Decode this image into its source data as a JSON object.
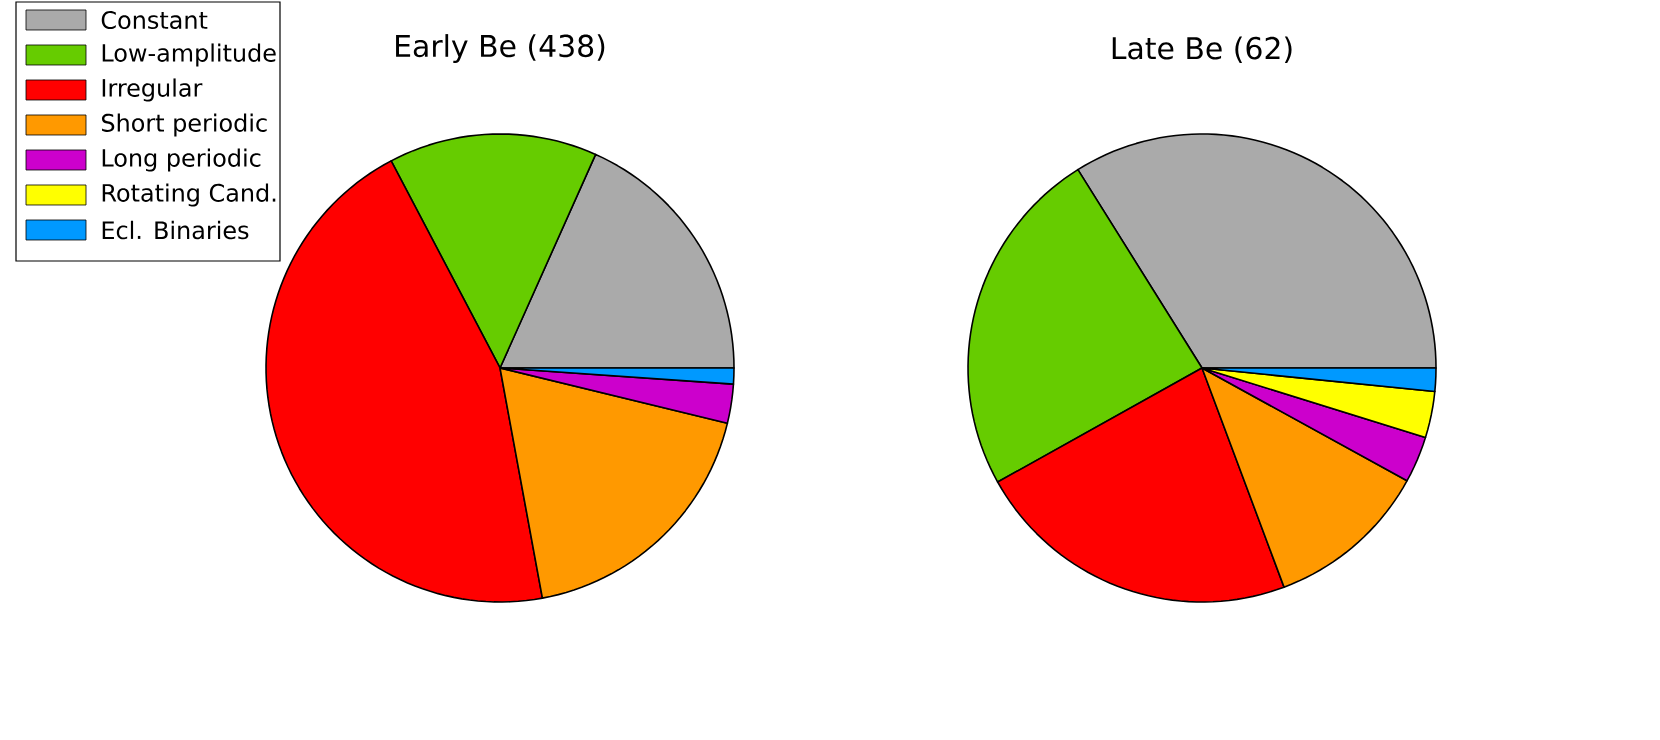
{
  "chart_data": [
    {
      "type": "pie",
      "title": "Early Be (438)",
      "legend": "top left",
      "categories": [
        "Constant",
        "Low-amplitude",
        "Irregular",
        "Short periodic",
        "Long periodic",
        "Rotating Cand.",
        "Ecl. Binaries"
      ],
      "values": [
        18.3,
        14.4,
        45.2,
        18.3,
        2.7,
        0,
        1.1
      ],
      "colors": [
        "#aaaaaa",
        "#66cc00",
        "#ff0000",
        "#ff9900",
        "#cc00cc",
        "#ffff00",
        "#0099ff"
      ]
    },
    {
      "type": "pie",
      "title": "Late Be (62)",
      "categories": [
        null,
        null,
        null,
        null,
        null,
        null,
        null
      ],
      "values": [
        33.9,
        24.2,
        22.6,
        11.3,
        3.2,
        3.2,
        1.6
      ],
      "colors": [
        "#aaaaaa",
        "#66cc00",
        "#ff0000",
        "#ff9900",
        "#cc00cc",
        "#ffff00",
        "#0099ff"
      ]
    }
  ]
}
